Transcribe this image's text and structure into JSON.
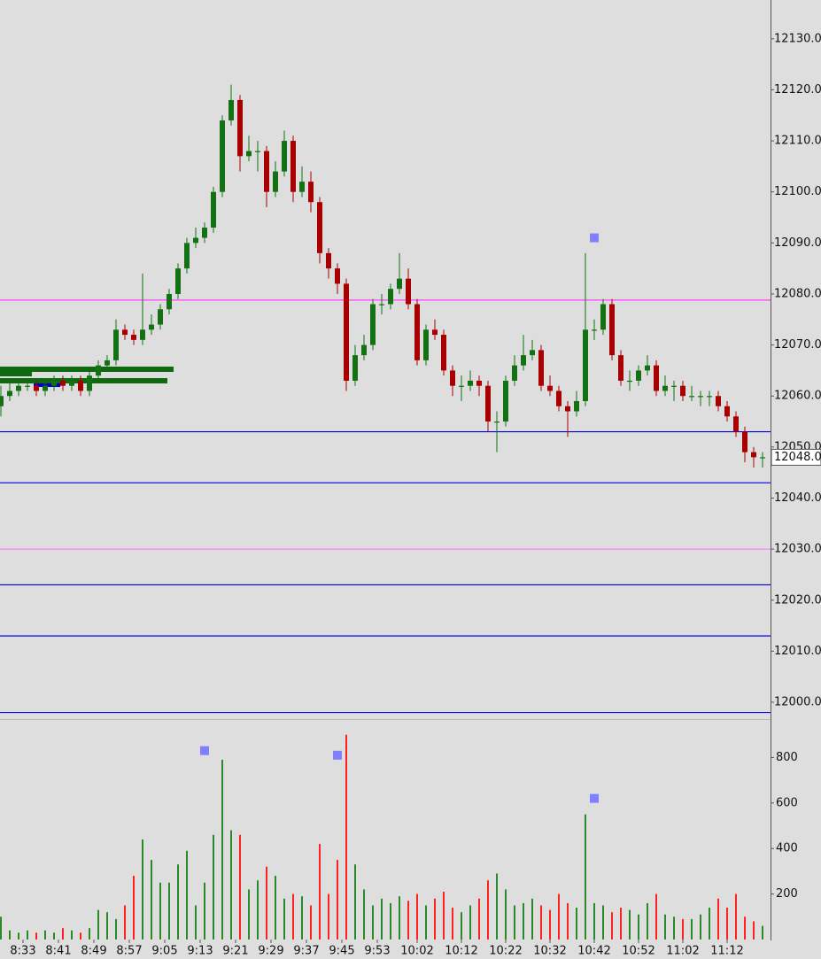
{
  "chart_data": {
    "type": "candlestick",
    "x": [
      28,
      30,
      32,
      34,
      36,
      38,
      40,
      42,
      44,
      46,
      48,
      50,
      52,
      54,
      56,
      58,
      60,
      62,
      64,
      66,
      68,
      70,
      72,
      74,
      76,
      78,
      80,
      82,
      84,
      86,
      88,
      90,
      92,
      94,
      96,
      98,
      100,
      102,
      104,
      106,
      108,
      110,
      112,
      114,
      116,
      118,
      120,
      122,
      124,
      126,
      128,
      130,
      132,
      134,
      136,
      138,
      140,
      142,
      144,
      146,
      148,
      150,
      152,
      154,
      156,
      158,
      160,
      162,
      164,
      166,
      168,
      170,
      172,
      174,
      176,
      178,
      180,
      182,
      184,
      186,
      188,
      190,
      192,
      194,
      196,
      198,
      200
    ],
    "open": [
      12058,
      12060,
      12061,
      12062,
      12062,
      12061,
      12062,
      12063,
      12062,
      12063,
      12061,
      12064,
      12066,
      12067,
      12073,
      12072,
      12071,
      12073,
      12074,
      12077,
      12080,
      12085,
      12090,
      12091,
      12093,
      12100,
      12114,
      12118,
      12107,
      12108,
      12108,
      12100,
      12104,
      12110,
      12100,
      12102,
      12098,
      12088,
      12085,
      12082,
      12063,
      12068,
      12070,
      12078,
      12078,
      12081,
      12083,
      12078,
      12067,
      12073,
      12072,
      12065,
      12062,
      12062,
      12063,
      12062,
      12055,
      12055,
      12063,
      12066,
      12068,
      12069,
      12062,
      12061,
      12058,
      12057,
      12059,
      12073,
      12073,
      12078,
      12068,
      12063,
      12063,
      12065,
      12066,
      12061,
      12062,
      12062,
      12060,
      12060,
      12060,
      12060,
      12058,
      12056,
      12053,
      12049,
      12048
    ],
    "high": [
      12062,
      12063,
      12063,
      12063,
      12063,
      12063,
      12064,
      12064,
      12064,
      12064,
      12065,
      12067,
      12068,
      12075,
      12074,
      12073,
      12084,
      12076,
      12078,
      12081,
      12086,
      12091,
      12093,
      12094,
      12101,
      12115,
      12121,
      12119,
      12111,
      12110,
      12109,
      12106,
      12112,
      12111,
      12105,
      12104,
      12099,
      12089,
      12086,
      12083,
      12070,
      12072,
      12079,
      12080,
      12082,
      12088,
      12085,
      12079,
      12074,
      12075,
      12073,
      12066,
      12064,
      12065,
      12064,
      12063,
      12057,
      12064,
      12068,
      12072,
      12071,
      12070,
      12064,
      12062,
      12059,
      12061,
      12088,
      12075,
      12079,
      12079,
      12069,
      12065,
      12066,
      12068,
      12067,
      12064,
      12063,
      12063,
      12062,
      12061,
      12061,
      12061,
      12059,
      12057,
      12054,
      12050,
      12049
    ],
    "low": [
      12056,
      12059,
      12060,
      12061,
      12060,
      12060,
      12061,
      12061,
      12061,
      12060,
      12060,
      12063,
      12065,
      12066,
      12071,
      12070,
      12070,
      12072,
      12073,
      12076,
      12079,
      12084,
      12089,
      12090,
      12092,
      12099,
      12113,
      12104,
      12106,
      12104,
      12097,
      12099,
      12103,
      12098,
      12099,
      12096,
      12086,
      12083,
      12080,
      12061,
      12062,
      12067,
      12069,
      12076,
      12077,
      12080,
      12077,
      12066,
      12066,
      12071,
      12064,
      12060,
      12059,
      12061,
      12060,
      12053,
      12049,
      12054,
      12062,
      12065,
      12067,
      12061,
      12060,
      12057,
      12052,
      12056,
      12058,
      12071,
      12072,
      12067,
      12062,
      12061,
      12062,
      12064,
      12060,
      12060,
      12059,
      12059,
      12059,
      12058,
      12058,
      12057,
      12055,
      12052,
      12047,
      12046,
      12046
    ],
    "close": [
      12060,
      12061,
      12062,
      12062,
      12061,
      12062,
      12063,
      12062,
      12063,
      12061,
      12064,
      12066,
      12067,
      12073,
      12072,
      12071,
      12073,
      12074,
      12077,
      12080,
      12085,
      12090,
      12091,
      12093,
      12100,
      12114,
      12118,
      12107,
      12108,
      12108,
      12100,
      12104,
      12110,
      12100,
      12102,
      12098,
      12088,
      12085,
      12082,
      12063,
      12068,
      12070,
      12078,
      12078,
      12081,
      12083,
      12078,
      12067,
      12073,
      12072,
      12065,
      12062,
      12062,
      12063,
      12062,
      12055,
      12055,
      12063,
      12066,
      12068,
      12069,
      12062,
      12061,
      12058,
      12057,
      12059,
      12073,
      12073,
      12078,
      12068,
      12063,
      12063,
      12065,
      12066,
      12061,
      12062,
      12062,
      12060,
      12060,
      12060,
      12060,
      12058,
      12056,
      12053,
      12049,
      12048,
      12048
    ],
    "volume": [
      100,
      40,
      30,
      40,
      30,
      40,
      30,
      50,
      40,
      30,
      50,
      130,
      120,
      90,
      150,
      280,
      440,
      350,
      250,
      250,
      330,
      390,
      150,
      250,
      460,
      790,
      480,
      460,
      220,
      260,
      320,
      280,
      180,
      200,
      190,
      150,
      420,
      200,
      350,
      900,
      330,
      220,
      150,
      180,
      160,
      190,
      170,
      200,
      150,
      180,
      210,
      140,
      120,
      150,
      180,
      260,
      290,
      220,
      150,
      160,
      180,
      150,
      130,
      200,
      160,
      140,
      550,
      160,
      150,
      120,
      140,
      130,
      110,
      160,
      200,
      110,
      100,
      90,
      90,
      110,
      140,
      180,
      140,
      200,
      100,
      80,
      60
    ],
    "up_color": "#137013",
    "down_color": "#a80000",
    "vol_up_color": "#2a8a2a",
    "vol_down_color": "#ff2020",
    "xlim": [
      27.8,
      201.8
    ],
    "xticks": [
      {
        "value": 33,
        "label": "8:33"
      },
      {
        "value": 41,
        "label": "8:41"
      },
      {
        "value": 49,
        "label": "8:49"
      },
      {
        "value": 57,
        "label": "8:57"
      },
      {
        "value": 65,
        "label": "9:05"
      },
      {
        "value": 73,
        "label": "9:13"
      },
      {
        "value": 81,
        "label": "9:21"
      },
      {
        "value": 89,
        "label": "9:29"
      },
      {
        "value": 97,
        "label": "9:37"
      },
      {
        "value": 105,
        "label": "9:45"
      },
      {
        "value": 113,
        "label": "9:53"
      },
      {
        "value": 122,
        "label": "10:02"
      },
      {
        "value": 132,
        "label": "10:12"
      },
      {
        "value": 142,
        "label": "10:22"
      },
      {
        "value": 152,
        "label": "10:32"
      },
      {
        "value": 162,
        "label": "10:42"
      },
      {
        "value": 172,
        "label": "10:52"
      },
      {
        "value": 182,
        "label": "11:02"
      },
      {
        "value": 192,
        "label": "11:12"
      }
    ],
    "ylim": [
      11997.4,
      12137.6
    ],
    "yticks": [
      {
        "value": 12000,
        "label": "12000.0"
      },
      {
        "value": 12010,
        "label": "12010.0"
      },
      {
        "value": 12020,
        "label": "12020.0"
      },
      {
        "value": 12030,
        "label": "12030.0"
      },
      {
        "value": 12040,
        "label": "12040.0"
      },
      {
        "value": 12050,
        "label": "12050.0"
      },
      {
        "value": 12060,
        "label": "12060.0"
      },
      {
        "value": 12070,
        "label": "12070.0"
      },
      {
        "value": 12080,
        "label": "12080.0"
      },
      {
        "value": 12090,
        "label": "12090.0"
      },
      {
        "value": 12100,
        "label": "12100.0"
      },
      {
        "value": 12110,
        "label": "12110.0"
      },
      {
        "value": 12120,
        "label": "12120.0"
      },
      {
        "value": 12130,
        "label": "12130.0"
      }
    ],
    "vol_ylim": [
      0,
      930
    ],
    "vol_yticks": [
      200,
      400,
      600,
      800
    ],
    "levels": [
      {
        "value": 12078.8,
        "color": "#ff40ff"
      },
      {
        "value": 12053,
        "color": "#0000e0"
      },
      {
        "value": 12043,
        "color": "#0000e0"
      },
      {
        "value": 12030,
        "color": "#ff80ff"
      },
      {
        "value": 12023,
        "color": "#0000e0"
      },
      {
        "value": 12013,
        "color": "#0000e0"
      },
      {
        "value": 11998,
        "color": "#0000e0"
      }
    ],
    "last_price": {
      "value": 12048,
      "label": "12048.0"
    },
    "price_markers": [
      {
        "x": 162,
        "value": 12091
      }
    ],
    "volume_markers": [
      {
        "x": 74,
        "value": 830
      },
      {
        "x": 104,
        "value": 810
      },
      {
        "x": 162,
        "value": 620
      }
    ],
    "marker_color": "#8080ff"
  }
}
